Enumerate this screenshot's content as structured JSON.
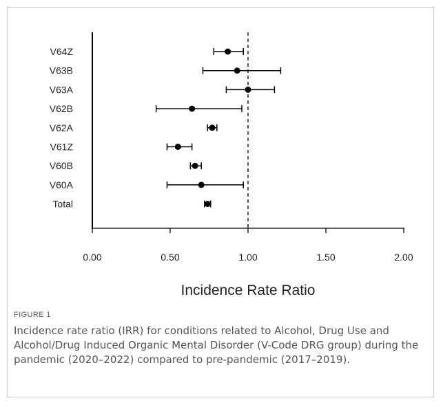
{
  "figure": {
    "label": "FIGURE 1",
    "caption": "Incidence rate ratio (IRR) for conditions related to Alcohol, Drug Use and Alcohol/Drug Induced Organic Mental Disorder (V-Code DRG group) during the pandemic (2020–2022) compared to pre-pandemic (2017–2019)."
  },
  "chart_data": {
    "type": "forest",
    "title": "",
    "xlabel": "Incidence Rate Ratio",
    "ylabel": "",
    "xlim": [
      0,
      2
    ],
    "xticks": [
      "0.00",
      "0.50",
      "1.00",
      "1.50",
      "2.00"
    ],
    "reference_line": 1.0,
    "grid": false,
    "categories": [
      "V64Z",
      "V63B",
      "V63A",
      "V62B",
      "V62A",
      "V61Z",
      "V60B",
      "V60A",
      "Total"
    ],
    "estimates": [
      0.87,
      0.93,
      1.0,
      0.64,
      0.77,
      0.55,
      0.66,
      0.7,
      0.74
    ],
    "ci_lower": [
      0.78,
      0.71,
      0.86,
      0.41,
      0.74,
      0.48,
      0.63,
      0.48,
      0.72
    ],
    "ci_upper": [
      0.97,
      1.21,
      1.17,
      0.96,
      0.8,
      0.64,
      0.7,
      0.97,
      0.76
    ],
    "colors": {
      "marker": "#000000",
      "axis": "#000000",
      "text": "#222222"
    }
  }
}
